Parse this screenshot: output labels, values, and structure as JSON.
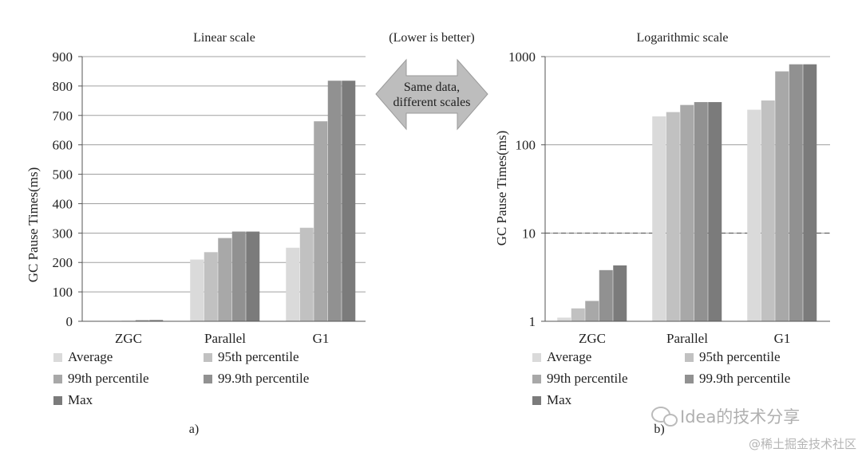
{
  "header": {
    "note": "(Lower is better)",
    "arrow_line1": "Same data,",
    "arrow_line2": "different scales"
  },
  "legend": [
    "Average",
    "95th percentile",
    "99th percentile",
    "99.9th percentile",
    "Max"
  ],
  "colors": [
    "#dadada",
    "#c1c1c1",
    "#a8a8a8",
    "#919191",
    "#7b7b7b"
  ],
  "watermark": {
    "line1": "Idea的技术分享",
    "line2": "@稀土掘金技术社区"
  },
  "chart_data": [
    {
      "type": "bar",
      "title": "Linear scale",
      "panel_label": "a)",
      "ylabel": "GC Pause Times(ms)",
      "yscale": "linear",
      "ylim": [
        0,
        900
      ],
      "yticks": [
        "0",
        "100",
        "200",
        "300",
        "400",
        "500",
        "600",
        "700",
        "800",
        "900"
      ],
      "categories": [
        "ZGC",
        "Parallel",
        "G1"
      ],
      "series": [
        {
          "name": "Average",
          "values": [
            1.1,
            210,
            250
          ]
        },
        {
          "name": "95th percentile",
          "values": [
            1.4,
            235,
            318
          ]
        },
        {
          "name": "99th percentile",
          "values": [
            1.7,
            283,
            680
          ]
        },
        {
          "name": "99.9th percentile",
          "values": [
            3.8,
            305,
            818
          ]
        },
        {
          "name": "Max",
          "values": [
            4.3,
            305,
            818
          ]
        }
      ],
      "grid": true,
      "legend_position": "bottom"
    },
    {
      "type": "bar",
      "title": "Logarithmic scale",
      "panel_label": "b)",
      "ylabel": "GC Pause Times(ms)",
      "yscale": "log",
      "ylim": [
        1,
        1000
      ],
      "yticks": [
        "1",
        "10",
        "100",
        "1000"
      ],
      "reference_line": 10,
      "categories": [
        "ZGC",
        "Parallel",
        "G1"
      ],
      "series": [
        {
          "name": "Average",
          "values": [
            1.1,
            210,
            250
          ]
        },
        {
          "name": "95th percentile",
          "values": [
            1.4,
            235,
            318
          ]
        },
        {
          "name": "99th percentile",
          "values": [
            1.7,
            283,
            680
          ]
        },
        {
          "name": "99.9th percentile",
          "values": [
            3.8,
            305,
            818
          ]
        },
        {
          "name": "Max",
          "values": [
            4.3,
            305,
            818
          ]
        }
      ],
      "grid": true,
      "legend_position": "bottom"
    }
  ]
}
